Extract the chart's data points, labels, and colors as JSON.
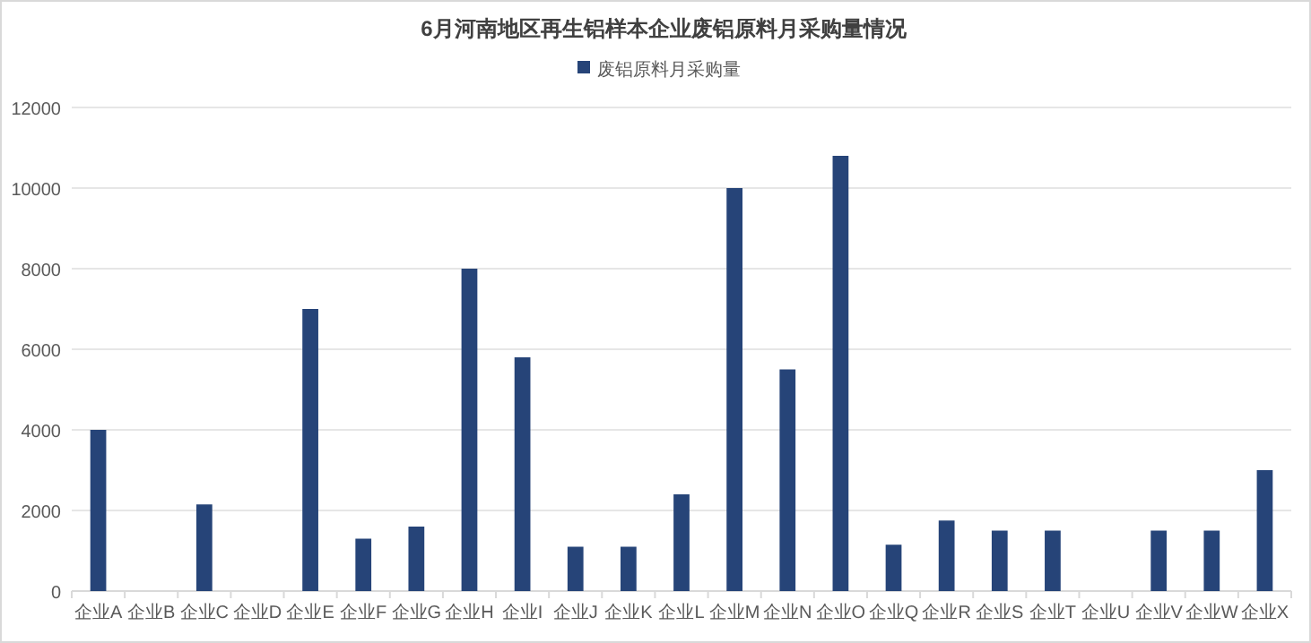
{
  "chart_data": {
    "type": "bar",
    "title": "6月河南地区再生铝样本企业废铝原料月采购量情况",
    "categories": [
      "企业A",
      "企业B",
      "企业C",
      "企业D",
      "企业E",
      "企业F",
      "企业G",
      "企业H",
      "企业I",
      "企业J",
      "企业K",
      "企业L",
      "企业M",
      "企业N",
      "企业O",
      "企业Q",
      "企业R",
      "企业S",
      "企业T",
      "企业U",
      "企业V",
      "企业W",
      "企业X"
    ],
    "series": [
      {
        "name": "废铝原料月采购量",
        "color": "#264478",
        "values": [
          4000,
          0,
          2150,
          0,
          7000,
          1300,
          1600,
          8000,
          5800,
          1100,
          1100,
          2400,
          10000,
          5500,
          10800,
          1150,
          1750,
          1500,
          1500,
          0,
          1500,
          1500,
          3000
        ]
      }
    ],
    "ylim": [
      0,
      12000
    ],
    "yticks": [
      0,
      2000,
      4000,
      6000,
      8000,
      10000,
      12000
    ],
    "grid": "y",
    "legend": "top"
  }
}
